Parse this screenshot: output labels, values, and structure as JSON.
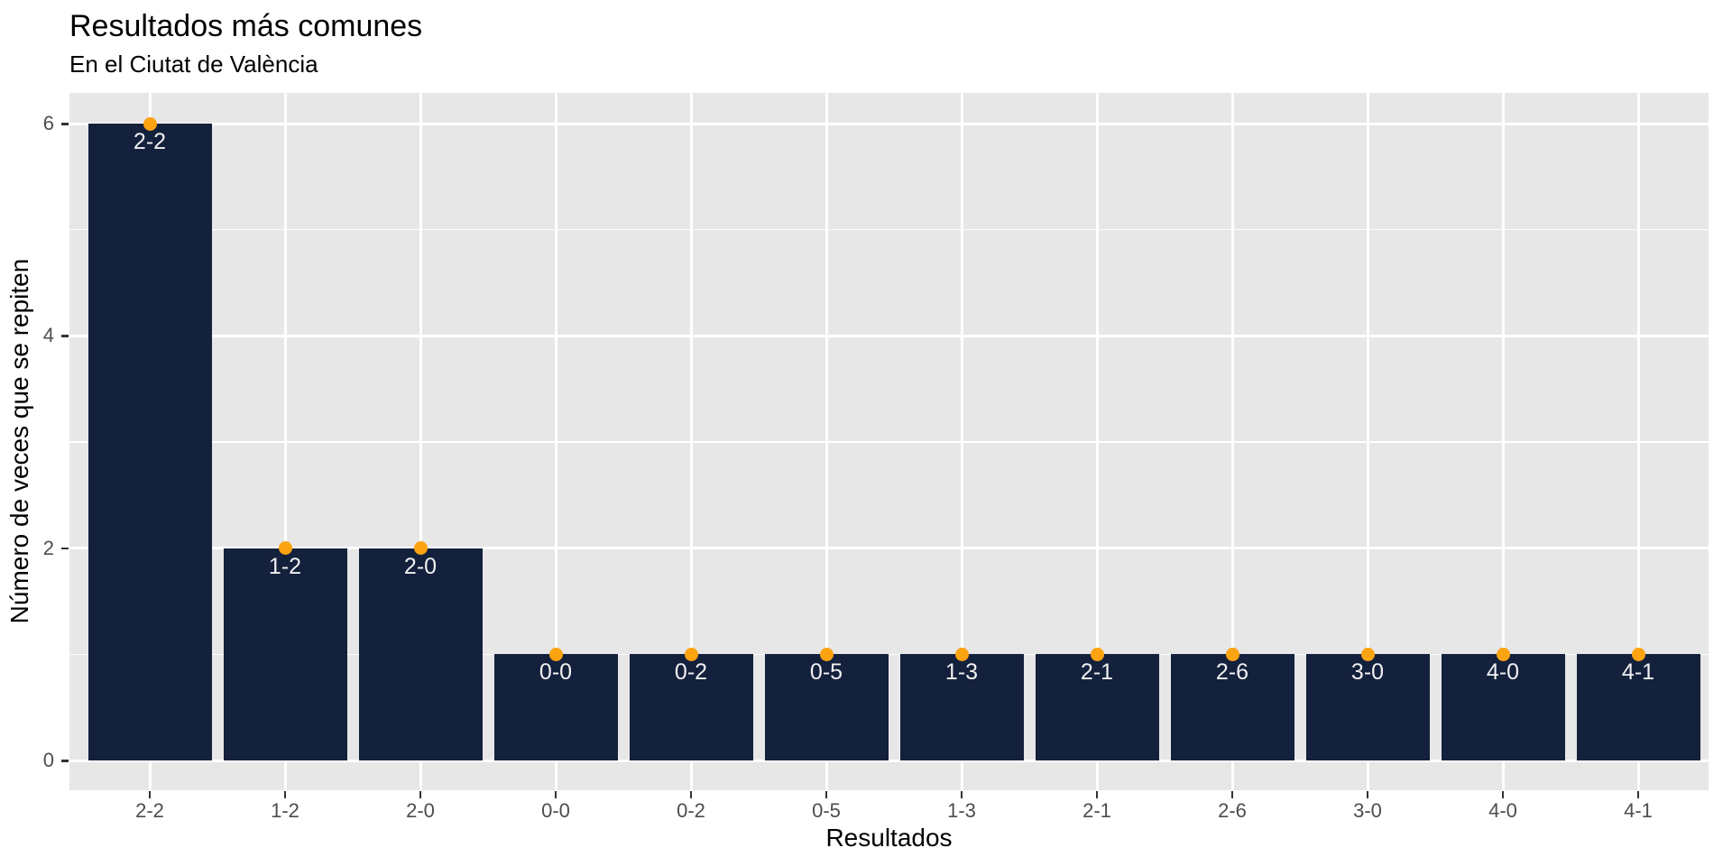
{
  "chart_data": {
    "type": "bar",
    "title": "Resultados más comunes",
    "subtitle": "En el Ciutat de València",
    "xlabel": "Resultados",
    "ylabel": "Número de veces que se repiten",
    "categories": [
      "2-2",
      "1-2",
      "2-0",
      "0-0",
      "0-2",
      "0-5",
      "1-3",
      "2-1",
      "2-6",
      "3-0",
      "4-0",
      "4-1"
    ],
    "values": [
      6,
      2,
      2,
      1,
      1,
      1,
      1,
      1,
      1,
      1,
      1,
      1
    ],
    "bar_labels": [
      "2-2",
      "1-2",
      "2-0",
      "0-0",
      "0-2",
      "0-5",
      "1-3",
      "2-1",
      "2-6",
      "3-0",
      "4-0",
      "4-1"
    ],
    "point_values": [
      6,
      2,
      2,
      1,
      1,
      1,
      1,
      1,
      1,
      1,
      1,
      1
    ],
    "ylim": [
      0,
      6
    ],
    "yticks_major": [
      0,
      2,
      4,
      6
    ],
    "yticks_minor": [
      1,
      3,
      5
    ],
    "grid": "white major+minor horizontal lines, white vertical line at each category center",
    "legend": "none",
    "colors": {
      "bar": "#14213D",
      "point": "#FCA311",
      "panel_background": "#E7E7E8",
      "gridline": "#FFFFFF",
      "bar_label_text": "#F0F0F0",
      "tick_label_text": "#4D4D4D",
      "tick_mark": "#333333",
      "title_text": "#000000",
      "figure_background": "#FFFFFF"
    }
  }
}
